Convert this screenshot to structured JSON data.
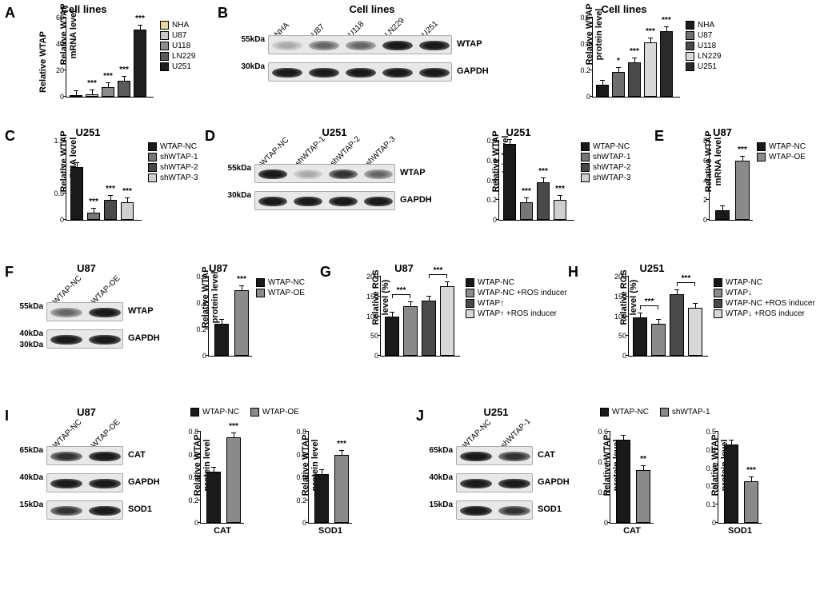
{
  "colors": {
    "nha": "#e6d59a",
    "u87": "#c8c8c8",
    "u118": "#8c8c8c",
    "ln229": "#5a5a5a",
    "u251": "#1f1f1f",
    "nha_b": "#1a1a1a",
    "u87_b": "#6e6e6e",
    "u118_b": "#4a4a4a",
    "ln229_b": "#d9d9d9",
    "u251_b": "#2a2a2a",
    "nc": "#1a1a1a",
    "sh1": "#777777",
    "sh2": "#4a4a4a",
    "sh3": "#d0d0d0",
    "oe": "#8a8a8a",
    "g1": "#1a1a1a",
    "g2": "#8a8a8a",
    "g3": "#4a4a4a",
    "g4": "#d8d8d8"
  },
  "panelA": {
    "title": "Cell lines",
    "ylabel": "Relative WTAP\nmRNA level",
    "ymax": 60,
    "yticks": [
      0,
      20,
      40,
      60
    ],
    "series": [
      {
        "label": "NHA",
        "value": 1,
        "sig": "",
        "color": "#e6d59a"
      },
      {
        "label": "U87",
        "value": 2,
        "sig": "***",
        "color": "#c8c8c8"
      },
      {
        "label": "U118",
        "value": 7,
        "sig": "***",
        "color": "#8c8c8c"
      },
      {
        "label": "LN229",
        "value": 12,
        "sig": "***",
        "color": "#5a5a5a"
      },
      {
        "label": "U251",
        "value": 51,
        "sig": "***",
        "color": "#1f1f1f"
      }
    ]
  },
  "panelB": {
    "title": "Cell lines",
    "blot": {
      "lanes": [
        "NHA",
        "U87",
        "U118",
        "LN229",
        "U251"
      ],
      "rows": [
        {
          "name": "WTAP",
          "mw": "55kDa",
          "intensity": [
            "vweak",
            "weak",
            "weak",
            "strong",
            "strong"
          ]
        },
        {
          "name": "GAPDH",
          "mw": "30kDa",
          "intensity": [
            "strong",
            "strong",
            "strong",
            "strong",
            "strong"
          ]
        }
      ]
    },
    "chart": {
      "title": "Cell lines",
      "ylabel": "Relative WTAP\nprotein level",
      "ymax": 0.6,
      "yticks": [
        0.0,
        0.2,
        0.4,
        0.6
      ],
      "series": [
        {
          "label": "NHA",
          "value": 0.09,
          "sig": "",
          "color": "#1a1a1a"
        },
        {
          "label": "U87",
          "value": 0.19,
          "sig": "*",
          "color": "#6e6e6e"
        },
        {
          "label": "U118",
          "value": 0.26,
          "sig": "***",
          "color": "#4a4a4a"
        },
        {
          "label": "LN229",
          "value": 0.41,
          "sig": "***",
          "color": "#d9d9d9"
        },
        {
          "label": "U251",
          "value": 0.5,
          "sig": "***",
          "color": "#2a2a2a"
        }
      ]
    }
  },
  "panelC": {
    "title": "U251",
    "ylabel": "Relative WTAP\nmRNA level",
    "ymax": 1.5,
    "yticks": [
      0.0,
      0.5,
      1.0,
      1.5
    ],
    "series": [
      {
        "label": "WTAP-NC",
        "value": 1.0,
        "sig": "",
        "color": "#1a1a1a"
      },
      {
        "label": "shWTAP-1",
        "value": 0.13,
        "sig": "***",
        "color": "#777777"
      },
      {
        "label": "shWTAP-2",
        "value": 0.38,
        "sig": "***",
        "color": "#4a4a4a"
      },
      {
        "label": "shWTAP-3",
        "value": 0.33,
        "sig": "***",
        "color": "#d0d0d0"
      }
    ]
  },
  "panelD": {
    "title": "U251",
    "blot": {
      "lanes": [
        "WTAP-NC",
        "shWTAP-1",
        "shWTAP-2",
        "shWTAP-3"
      ],
      "rows": [
        {
          "name": "WTAP",
          "mw": "55kDa",
          "intensity": [
            "strong",
            "vweak",
            "med",
            "weak"
          ]
        },
        {
          "name": "GAPDH",
          "mw": "30kDa",
          "intensity": [
            "strong",
            "strong",
            "strong",
            "strong"
          ]
        }
      ]
    },
    "chart": {
      "title": "U251",
      "ylabel": "Relative WTAP\nprotein level",
      "ymax": 0.8,
      "yticks": [
        0.0,
        0.2,
        0.4,
        0.6,
        0.8
      ],
      "series": [
        {
          "label": "WTAP-NC",
          "value": 0.77,
          "sig": "",
          "color": "#1a1a1a"
        },
        {
          "label": "shWTAP-1",
          "value": 0.18,
          "sig": "***",
          "color": "#777777"
        },
        {
          "label": "shWTAP-2",
          "value": 0.38,
          "sig": "***",
          "color": "#4a4a4a"
        },
        {
          "label": "shWTAP-3",
          "value": 0.2,
          "sig": "***",
          "color": "#d0d0d0"
        }
      ]
    }
  },
  "panelE": {
    "title": "U87",
    "ylabel": "Relative WTAP\nmRNA level",
    "ymax": 8,
    "yticks": [
      0,
      2,
      4,
      6,
      8
    ],
    "series": [
      {
        "label": "WTAP-NC",
        "value": 1.0,
        "sig": "",
        "color": "#1a1a1a"
      },
      {
        "label": "WTAP-OE",
        "value": 6.0,
        "sig": "***",
        "color": "#8a8a8a"
      }
    ]
  },
  "panelF": {
    "title": "U87",
    "blot": {
      "lanes": [
        "WTAP-NC",
        "WTAP-OE"
      ],
      "rows": [
        {
          "name": "WTAP",
          "mw": "55kDa",
          "intensity": [
            "weak",
            "strong"
          ]
        },
        {
          "name": "GAPDH",
          "mw": [
            "40kDa",
            "30kDa"
          ],
          "intensity": [
            "strong",
            "strong"
          ]
        }
      ]
    },
    "chart": {
      "title": "U87",
      "ylabel": "Relative WTAP\nprotein level",
      "ymax": 0.6,
      "yticks": [
        0.0,
        0.2,
        0.4,
        0.6
      ],
      "series": [
        {
          "label": "WTAP-NC",
          "value": 0.24,
          "sig": "",
          "color": "#1a1a1a"
        },
        {
          "label": "WTAP-OE",
          "value": 0.5,
          "sig": "***",
          "color": "#8a8a8a"
        }
      ]
    }
  },
  "panelG": {
    "title": "U87",
    "ylabel": "Relative ROS\nlevel (%)",
    "ymax": 200,
    "yticks": [
      0,
      50,
      100,
      150,
      200
    ],
    "series": [
      {
        "label": "WTAP-NC",
        "value": 100,
        "color": "#1a1a1a"
      },
      {
        "label": "WTAP-NC +ROS inducer",
        "value": 125,
        "color": "#8a8a8a"
      },
      {
        "label": "WTAP↑",
        "value": 140,
        "color": "#4a4a4a"
      },
      {
        "label": "WTAP↑ +ROS inducer",
        "value": 175,
        "color": "#d8d8d8"
      }
    ],
    "brackets": [
      {
        "from": 0,
        "to": 1,
        "sig": "***"
      },
      {
        "from": 2,
        "to": 3,
        "sig": "***"
      }
    ]
  },
  "panelH": {
    "title": "U251",
    "ylabel": "Relative ROS\nlevel (%)",
    "ymax": 200,
    "yticks": [
      0,
      50,
      100,
      150,
      200
    ],
    "series": [
      {
        "label": "WTAP-NC",
        "value": 98,
        "color": "#1a1a1a"
      },
      {
        "label": "WTAP↓",
        "value": 80,
        "color": "#8a8a8a"
      },
      {
        "label": "WTAP-NC +ROS inducer",
        "value": 155,
        "color": "#4a4a4a"
      },
      {
        "label": "WTAP↓ +ROS inducer",
        "value": 122,
        "color": "#d8d8d8"
      }
    ],
    "brackets": [
      {
        "from": 0,
        "to": 1,
        "sig": "***"
      },
      {
        "from": 2,
        "to": 3,
        "sig": "***"
      }
    ]
  },
  "panelI": {
    "title": "U87",
    "blot": {
      "lanes": [
        "WTAP-NC",
        "WTAP-OE"
      ],
      "rows": [
        {
          "name": "CAT",
          "mw": "65kDa",
          "intensity": [
            "med",
            "strong"
          ]
        },
        {
          "name": "GAPDH",
          "mw": "40kDa",
          "intensity": [
            "strong",
            "strong"
          ]
        },
        {
          "name": "SOD1",
          "mw": "15kDa",
          "intensity": [
            "med",
            "strong"
          ]
        }
      ]
    },
    "charts": [
      {
        "ylabel": "Relative WTAP\nprotein level",
        "xlabel": "CAT",
        "ymax": 0.8,
        "yticks": [
          0.0,
          0.2,
          0.4,
          0.6,
          0.8
        ],
        "series": [
          {
            "label": "WTAP-NC",
            "value": 0.45,
            "sig": "",
            "color": "#1a1a1a"
          },
          {
            "label": "WTAP-OE",
            "value": 0.75,
            "sig": "***",
            "color": "#8a8a8a"
          }
        ]
      },
      {
        "ylabel": "Relative WTAP\nprotein level",
        "xlabel": "SOD1",
        "ymax": 0.8,
        "yticks": [
          0.0,
          0.2,
          0.4,
          0.6,
          0.8
        ],
        "series": [
          {
            "label": "WTAP-NC",
            "value": 0.43,
            "sig": "",
            "color": "#1a1a1a"
          },
          {
            "label": "WTAP-OE",
            "value": 0.6,
            "sig": "***",
            "color": "#8a8a8a"
          }
        ]
      }
    ],
    "legend": [
      "WTAP-NC",
      "WTAP-OE"
    ]
  },
  "panelJ": {
    "title": "U251",
    "blot": {
      "lanes": [
        "WTAP-NC",
        "shWTAP-1"
      ],
      "rows": [
        {
          "name": "CAT",
          "mw": "65kDa",
          "intensity": [
            "strong",
            "med"
          ]
        },
        {
          "name": "GAPDH",
          "mw": "40kDa",
          "intensity": [
            "strong",
            "strong"
          ]
        },
        {
          "name": "SOD1",
          "mw": "15kDa",
          "intensity": [
            "strong",
            "med"
          ]
        }
      ]
    },
    "charts": [
      {
        "ylabel": "Relative WTAP\nprotein level",
        "xlabel": "CAT",
        "ymax": 0.6,
        "yticks": [
          0.0,
          0.2,
          0.4,
          0.6
        ],
        "series": [
          {
            "label": "WTAP-NC",
            "value": 0.55,
            "sig": "",
            "color": "#1a1a1a"
          },
          {
            "label": "shWTAP-1",
            "value": 0.35,
            "sig": "**",
            "color": "#8a8a8a"
          }
        ]
      },
      {
        "ylabel": "Relative WTAP\nprotein level",
        "xlabel": "SOD1",
        "ymax": 0.5,
        "yticks": [
          0.0,
          0.1,
          0.2,
          0.3,
          0.4,
          0.5
        ],
        "series": [
          {
            "label": "WTAP-NC",
            "value": 0.43,
            "sig": "",
            "color": "#1a1a1a"
          },
          {
            "label": "shWTAP-1",
            "value": 0.23,
            "sig": "***",
            "color": "#8a8a8a"
          }
        ]
      }
    ],
    "legend": [
      "WTAP-NC",
      "shWTAP-1"
    ]
  }
}
